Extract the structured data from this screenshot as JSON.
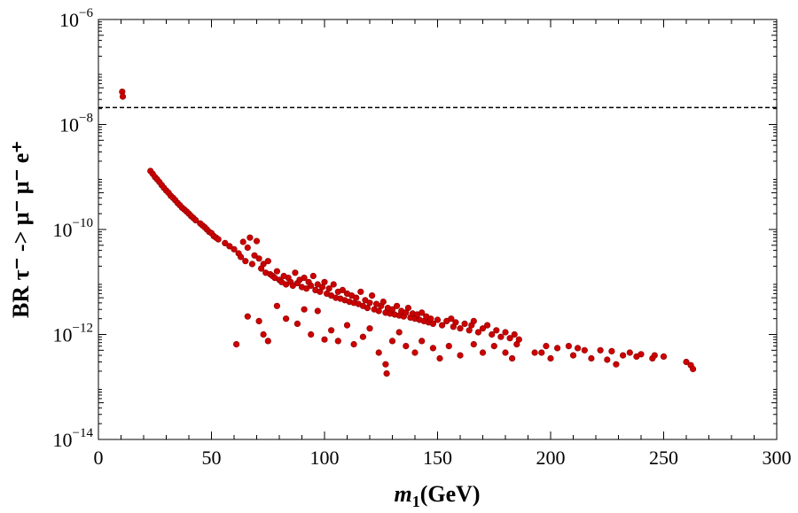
{
  "chart_data": {
    "type": "scatter",
    "title": "",
    "xlabel": "m1(GeV)",
    "ylabel": "BR τ⁻ -> μ⁻ μ⁻ e⁺",
    "x_axis": {
      "range": [
        0,
        300
      ],
      "scale": "linear",
      "ticks": [
        0,
        50,
        100,
        150,
        200,
        250,
        300
      ],
      "tick_labels": [
        "0",
        "50",
        "100",
        "150",
        "200",
        "250",
        "300"
      ]
    },
    "y_axis": {
      "range": [
        1e-14,
        1e-06
      ],
      "scale": "log",
      "ticks": [
        {
          "value": 1e-14,
          "base": "10",
          "exp": "−14"
        },
        {
          "value": 1e-12,
          "base": "10",
          "exp": "−12"
        },
        {
          "value": 1e-10,
          "base": "10",
          "exp": "−10"
        },
        {
          "value": 1e-08,
          "base": "10",
          "exp": "−8"
        },
        {
          "value": 1e-06,
          "base": "10",
          "exp": "−6"
        }
      ]
    },
    "reference_line": {
      "y": 2.1e-08,
      "style": "dashed",
      "color": "#000000"
    },
    "series": [
      {
        "name": "points",
        "color": "#cc0000",
        "points": [
          [
            10.5,
            4.2e-08
          ],
          [
            10.8,
            3.4e-08
          ],
          [
            23,
            1.3e-09
          ],
          [
            24,
            1.15e-09
          ],
          [
            25,
            1e-09
          ],
          [
            26,
            9e-10
          ],
          [
            27,
            8e-10
          ],
          [
            28,
            7e-10
          ],
          [
            29,
            6.2e-10
          ],
          [
            30,
            5.5e-10
          ],
          [
            31,
            5e-10
          ],
          [
            32,
            4.4e-10
          ],
          [
            33,
            4e-10
          ],
          [
            34,
            3.6e-10
          ],
          [
            35,
            3.2e-10
          ],
          [
            36,
            2.9e-10
          ],
          [
            37,
            2.6e-10
          ],
          [
            38,
            2.4e-10
          ],
          [
            39,
            2.2e-10
          ],
          [
            40,
            2e-10
          ],
          [
            41,
            1.8e-10
          ],
          [
            42,
            1.65e-10
          ],
          [
            43,
            1.5e-10
          ],
          [
            45,
            1.3e-10
          ],
          [
            46,
            1.2e-10
          ],
          [
            47,
            1.1e-10
          ],
          [
            48,
            1e-10
          ],
          [
            49,
            9e-11
          ],
          [
            50,
            8.5e-11
          ],
          [
            51,
            7.5e-11
          ],
          [
            52,
            7e-11
          ],
          [
            53,
            6.5e-11
          ],
          [
            56,
            5.5e-11
          ],
          [
            58,
            4.8e-11
          ],
          [
            60,
            4.2e-11
          ],
          [
            62,
            3.5e-11
          ],
          [
            63,
            3e-11
          ],
          [
            64,
            5.8e-11
          ],
          [
            65,
            2.5e-11
          ],
          [
            66,
            4.5e-11
          ],
          [
            67,
            7e-11
          ],
          [
            68,
            2.2e-11
          ],
          [
            69,
            3.2e-11
          ],
          [
            70,
            6e-11
          ],
          [
            71,
            2.8e-11
          ],
          [
            72,
            1.8e-11
          ],
          [
            73,
            2.2e-11
          ],
          [
            74,
            1.5e-11
          ],
          [
            75,
            2.5e-11
          ],
          [
            76,
            1.4e-11
          ],
          [
            77,
            1.3e-11
          ],
          [
            78,
            1.2e-11
          ],
          [
            79,
            1.6e-11
          ],
          [
            80,
            1.1e-11
          ],
          [
            81,
            1e-11
          ],
          [
            82,
            1.3e-11
          ],
          [
            83,
            9e-12
          ],
          [
            84,
            1.2e-11
          ],
          [
            85,
            1e-11
          ],
          [
            86,
            8.5e-12
          ],
          [
            87,
            1.5e-11
          ],
          [
            88,
            9.5e-12
          ],
          [
            89,
            1.1e-11
          ],
          [
            90,
            8e-12
          ],
          [
            91,
            1.2e-11
          ],
          [
            92,
            7.5e-12
          ],
          [
            93,
            1e-11
          ],
          [
            94,
            8.5e-12
          ],
          [
            95,
            1.3e-11
          ],
          [
            96,
            7e-12
          ],
          [
            97,
            9e-12
          ],
          [
            98,
            6.5e-12
          ],
          [
            99,
            8e-12
          ],
          [
            100,
            1e-11
          ],
          [
            101,
            6e-12
          ],
          [
            102,
            7.5e-12
          ],
          [
            103,
            5.5e-12
          ],
          [
            104,
            9e-12
          ],
          [
            105,
            5e-12
          ],
          [
            106,
            6.5e-12
          ],
          [
            107,
            4.8e-12
          ],
          [
            108,
            7e-12
          ],
          [
            109,
            4.5e-12
          ],
          [
            110,
            6e-12
          ],
          [
            111,
            4.2e-12
          ],
          [
            112,
            5.5e-12
          ],
          [
            113,
            4e-12
          ],
          [
            114,
            5e-12
          ],
          [
            115,
            3.8e-12
          ],
          [
            116,
            6.5e-12
          ],
          [
            117,
            3.5e-12
          ],
          [
            118,
            4.5e-12
          ],
          [
            119,
            3.2e-12
          ],
          [
            120,
            4e-12
          ],
          [
            121,
            5.5e-12
          ],
          [
            122,
            3e-12
          ],
          [
            123,
            3.8e-12
          ],
          [
            124,
            2.8e-12
          ],
          [
            125,
            3.5e-12
          ],
          [
            126,
            4.2e-12
          ],
          [
            127,
            2.6e-12
          ],
          [
            128,
            3.2e-12
          ],
          [
            129,
            2.5e-12
          ],
          [
            130,
            3e-12
          ],
          [
            131,
            2.4e-12
          ],
          [
            132,
            3.5e-12
          ],
          [
            133,
            2.3e-12
          ],
          [
            134,
            2.8e-12
          ],
          [
            135,
            2.2e-12
          ],
          [
            136,
            2.6e-12
          ],
          [
            137,
            3.2e-12
          ],
          [
            138,
            2.1e-12
          ],
          [
            139,
            2.5e-12
          ],
          [
            140,
            2e-12
          ],
          [
            141,
            2.4e-12
          ],
          [
            142,
            1.9e-12
          ],
          [
            143,
            2.6e-12
          ],
          [
            144,
            1.8e-12
          ],
          [
            145,
            2.2e-12
          ],
          [
            146,
            1.7e-12
          ],
          [
            147,
            2e-12
          ],
          [
            148,
            1.6e-12
          ],
          [
            150,
            1.9e-12
          ],
          [
            152,
            1.5e-12
          ],
          [
            154,
            1.8e-12
          ],
          [
            156,
            2e-12
          ],
          [
            157,
            1.4e-12
          ],
          [
            158,
            1.7e-12
          ],
          [
            160,
            1.3e-12
          ],
          [
            162,
            1.6e-12
          ],
          [
            164,
            1.2e-12
          ],
          [
            165,
            1.5e-12
          ],
          [
            166,
            1.8e-12
          ],
          [
            168,
            1.1e-12
          ],
          [
            170,
            1.3e-12
          ],
          [
            172,
            1.5e-12
          ],
          [
            174,
            1e-12
          ],
          [
            176,
            1.2e-12
          ],
          [
            178,
            9e-13
          ],
          [
            180,
            1.1e-12
          ],
          [
            182,
            8.5e-13
          ],
          [
            184,
            1e-12
          ],
          [
            186,
            8e-13
          ],
          [
            61,
            6.5e-13
          ],
          [
            66,
            2.2e-12
          ],
          [
            71,
            1.8e-12
          ],
          [
            73,
            1e-12
          ],
          [
            75,
            7.5e-13
          ],
          [
            79,
            3.5e-12
          ],
          [
            83,
            2e-12
          ],
          [
            88,
            1.6e-12
          ],
          [
            91,
            3e-12
          ],
          [
            94,
            1e-12
          ],
          [
            97,
            2.8e-12
          ],
          [
            100,
            8e-13
          ],
          [
            103,
            1.2e-12
          ],
          [
            106,
            7.5e-13
          ],
          [
            110,
            1.5e-12
          ],
          [
            113,
            6.5e-13
          ],
          [
            117,
            9e-13
          ],
          [
            120,
            1.3e-12
          ],
          [
            124,
            4.5e-13
          ],
          [
            127,
            2.7e-13
          ],
          [
            127.5,
            1.8e-13
          ],
          [
            130,
            7.5e-13
          ],
          [
            133,
            1.1e-12
          ],
          [
            136,
            6e-13
          ],
          [
            140,
            4.5e-13
          ],
          [
            143,
            7.5e-13
          ],
          [
            148,
            5.5e-13
          ],
          [
            151,
            3.5e-13
          ],
          [
            155,
            6e-13
          ],
          [
            160,
            4e-13
          ],
          [
            166,
            6.5e-13
          ],
          [
            170,
            4.5e-13
          ],
          [
            175,
            6e-13
          ],
          [
            180,
            4.5e-13
          ],
          [
            183,
            3.5e-13
          ],
          [
            185,
            6.5e-13
          ],
          [
            193,
            4.5e-13
          ],
          [
            198,
            6e-13
          ],
          [
            200,
            3.5e-13
          ],
          [
            203,
            5.5e-13
          ],
          [
            208,
            6e-13
          ],
          [
            210,
            4e-13
          ],
          [
            215,
            5e-13
          ],
          [
            218,
            3.5e-13
          ],
          [
            222,
            5e-13
          ],
          [
            225,
            3.3e-13
          ],
          [
            227,
            4.8e-13
          ],
          [
            229,
            2.7e-13
          ],
          [
            232,
            4e-13
          ],
          [
            235,
            4.5e-13
          ],
          [
            238,
            3.8e-13
          ],
          [
            240,
            4.2e-13
          ],
          [
            245,
            3.5e-13
          ],
          [
            250,
            3.8e-13
          ],
          [
            260,
            3e-13
          ],
          [
            262,
            2.6e-13
          ],
          [
            263,
            2.2e-13
          ],
          [
            196,
            4.5e-13
          ],
          [
            212,
            5.5e-13
          ],
          [
            246,
            4e-13
          ]
        ]
      }
    ]
  }
}
